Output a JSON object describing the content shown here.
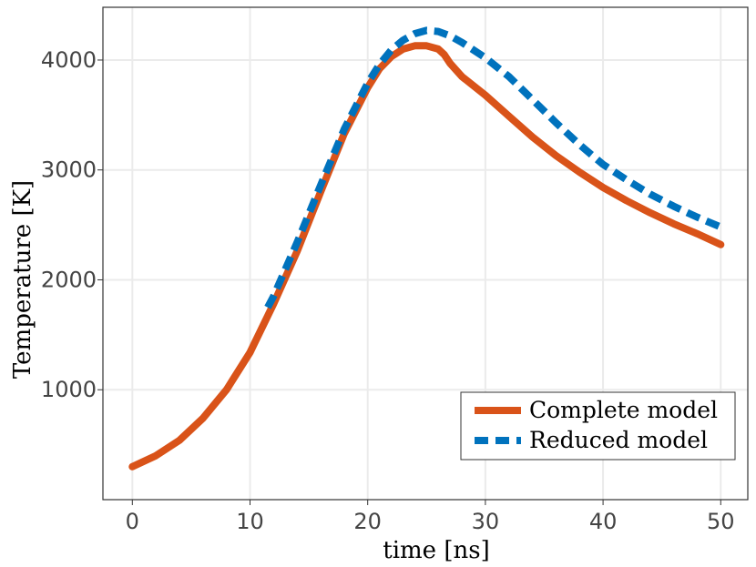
{
  "chart_data": {
    "type": "line",
    "title": "",
    "xlabel": "time [ns]",
    "ylabel": "Temperature [K]",
    "xlim": [
      -2.5,
      52.3
    ],
    "ylim": [
      0,
      4480
    ],
    "xticks": [
      0,
      10,
      20,
      30,
      40,
      50
    ],
    "yticks": [
      1000,
      2000,
      3000,
      4000
    ],
    "xtick_labels": [
      "0",
      "10",
      "20",
      "30",
      "40",
      "50"
    ],
    "ytick_labels": [
      "1000",
      "2000",
      "3000",
      "4000"
    ],
    "grid": true,
    "legend_position": "bottom-right",
    "series": [
      {
        "name": "Complete model",
        "color": "#D95319",
        "style": "solid",
        "x": [
          0,
          2,
          4,
          6,
          8,
          10,
          12,
          14,
          16,
          18,
          20,
          21,
          22,
          23,
          24,
          25,
          26,
          26.5,
          27,
          28,
          30,
          32,
          34,
          36,
          38,
          40,
          42,
          44,
          46,
          48,
          50
        ],
        "y": [
          300,
          400,
          540,
          740,
          1000,
          1340,
          1780,
          2260,
          2800,
          3330,
          3750,
          3920,
          4030,
          4100,
          4130,
          4130,
          4100,
          4050,
          3970,
          3850,
          3680,
          3490,
          3300,
          3130,
          2980,
          2840,
          2720,
          2610,
          2510,
          2420,
          2320
        ]
      },
      {
        "name": "Reduced model",
        "color": "#0072BD",
        "style": "dashed",
        "x": [
          11.5,
          12,
          14,
          16,
          18,
          20,
          21,
          22,
          23,
          24,
          25,
          26,
          27,
          28,
          30,
          32,
          34,
          36,
          38,
          40,
          42,
          44,
          46,
          48,
          50
        ],
        "y": [
          1750,
          1850,
          2340,
          2860,
          3370,
          3790,
          3960,
          4090,
          4180,
          4240,
          4270,
          4260,
          4220,
          4160,
          4020,
          3850,
          3640,
          3430,
          3230,
          3050,
          2910,
          2780,
          2670,
          2570,
          2480
        ]
      }
    ]
  }
}
